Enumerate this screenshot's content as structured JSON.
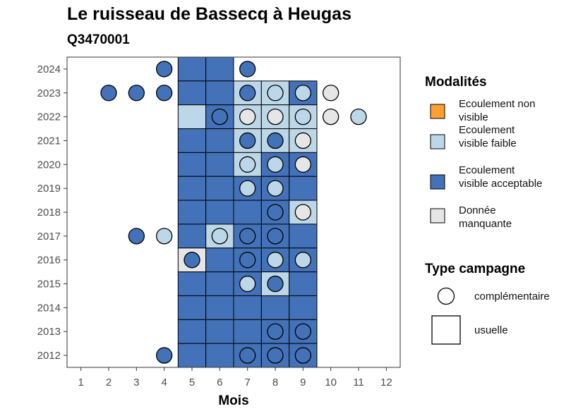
{
  "chart_data": {
    "type": "heatmap",
    "title": "Le ruisseau de Bassecq à Heugas",
    "subtitle": "Q3470001",
    "xlabel": "Mois",
    "ylabel": "",
    "x_ticks": [
      1,
      2,
      3,
      4,
      5,
      6,
      7,
      8,
      9,
      10,
      11,
      12
    ],
    "y_ticks": [
      2012,
      2013,
      2014,
      2015,
      2016,
      2017,
      2018,
      2019,
      2020,
      2021,
      2022,
      2023,
      2024
    ],
    "xlim": [
      0.5,
      12.5
    ],
    "ylim": [
      2011.5,
      2024.5
    ],
    "grid": false,
    "colors": {
      "non_visible": "#ff9e32",
      "faible": "#bcd7e7",
      "acceptable": "#4372b8",
      "manquante": "#e6e6e6"
    },
    "legend": {
      "modalites_title": "Modalités",
      "modalites": [
        {
          "key": "non_visible",
          "label": "Ecoulement non visible"
        },
        {
          "key": "faible",
          "label": "Ecoulement visible faible"
        },
        {
          "key": "acceptable",
          "label": "Ecoulement visible acceptable"
        },
        {
          "key": "manquante",
          "label": "Donnée manquante"
        }
      ],
      "campagne_title": "Type campagne",
      "campagne": [
        {
          "shape": "circle",
          "label": "complémentaire"
        },
        {
          "shape": "square",
          "label": "usuelle"
        }
      ]
    },
    "usuelle": [
      {
        "year": 2024,
        "month": 5,
        "v": "acceptable"
      },
      {
        "year": 2024,
        "month": 6,
        "v": "acceptable"
      },
      {
        "year": 2023,
        "month": 5,
        "v": "acceptable"
      },
      {
        "year": 2023,
        "month": 6,
        "v": "acceptable"
      },
      {
        "year": 2023,
        "month": 7,
        "v": "faible"
      },
      {
        "year": 2023,
        "month": 8,
        "v": "faible"
      },
      {
        "year": 2023,
        "month": 9,
        "v": "acceptable"
      },
      {
        "year": 2022,
        "month": 5,
        "v": "faible"
      },
      {
        "year": 2022,
        "month": 6,
        "v": "acceptable"
      },
      {
        "year": 2022,
        "month": 7,
        "v": "faible"
      },
      {
        "year": 2022,
        "month": 8,
        "v": "faible"
      },
      {
        "year": 2022,
        "month": 9,
        "v": "faible"
      },
      {
        "year": 2021,
        "month": 5,
        "v": "acceptable"
      },
      {
        "year": 2021,
        "month": 6,
        "v": "acceptable"
      },
      {
        "year": 2021,
        "month": 7,
        "v": "faible"
      },
      {
        "year": 2021,
        "month": 8,
        "v": "faible"
      },
      {
        "year": 2021,
        "month": 9,
        "v": "faible"
      },
      {
        "year": 2020,
        "month": 5,
        "v": "acceptable"
      },
      {
        "year": 2020,
        "month": 6,
        "v": "acceptable"
      },
      {
        "year": 2020,
        "month": 7,
        "v": "faible"
      },
      {
        "year": 2020,
        "month": 8,
        "v": "acceptable"
      },
      {
        "year": 2020,
        "month": 9,
        "v": "acceptable"
      },
      {
        "year": 2019,
        "month": 5,
        "v": "acceptable"
      },
      {
        "year": 2019,
        "month": 6,
        "v": "acceptable"
      },
      {
        "year": 2019,
        "month": 7,
        "v": "acceptable"
      },
      {
        "year": 2019,
        "month": 8,
        "v": "acceptable"
      },
      {
        "year": 2019,
        "month": 9,
        "v": "acceptable"
      },
      {
        "year": 2018,
        "month": 5,
        "v": "acceptable"
      },
      {
        "year": 2018,
        "month": 6,
        "v": "acceptable"
      },
      {
        "year": 2018,
        "month": 7,
        "v": "acceptable"
      },
      {
        "year": 2018,
        "month": 8,
        "v": "acceptable"
      },
      {
        "year": 2018,
        "month": 9,
        "v": "faible"
      },
      {
        "year": 2017,
        "month": 5,
        "v": "acceptable"
      },
      {
        "year": 2017,
        "month": 6,
        "v": "faible"
      },
      {
        "year": 2017,
        "month": 7,
        "v": "acceptable"
      },
      {
        "year": 2017,
        "month": 8,
        "v": "acceptable"
      },
      {
        "year": 2017,
        "month": 9,
        "v": "acceptable"
      },
      {
        "year": 2016,
        "month": 5,
        "v": "manquante"
      },
      {
        "year": 2016,
        "month": 6,
        "v": "acceptable"
      },
      {
        "year": 2016,
        "month": 7,
        "v": "acceptable"
      },
      {
        "year": 2016,
        "month": 8,
        "v": "acceptable"
      },
      {
        "year": 2016,
        "month": 9,
        "v": "acceptable"
      },
      {
        "year": 2015,
        "month": 5,
        "v": "acceptable"
      },
      {
        "year": 2015,
        "month": 6,
        "v": "acceptable"
      },
      {
        "year": 2015,
        "month": 7,
        "v": "acceptable"
      },
      {
        "year": 2015,
        "month": 8,
        "v": "faible"
      },
      {
        "year": 2015,
        "month": 9,
        "v": "acceptable"
      },
      {
        "year": 2014,
        "month": 5,
        "v": "acceptable"
      },
      {
        "year": 2014,
        "month": 6,
        "v": "acceptable"
      },
      {
        "year": 2014,
        "month": 7,
        "v": "acceptable"
      },
      {
        "year": 2014,
        "month": 8,
        "v": "acceptable"
      },
      {
        "year": 2014,
        "month": 9,
        "v": "acceptable"
      },
      {
        "year": 2013,
        "month": 5,
        "v": "acceptable"
      },
      {
        "year": 2013,
        "month": 6,
        "v": "acceptable"
      },
      {
        "year": 2013,
        "month": 7,
        "v": "acceptable"
      },
      {
        "year": 2013,
        "month": 8,
        "v": "acceptable"
      },
      {
        "year": 2013,
        "month": 9,
        "v": "acceptable"
      },
      {
        "year": 2012,
        "month": 5,
        "v": "acceptable"
      },
      {
        "year": 2012,
        "month": 6,
        "v": "acceptable"
      },
      {
        "year": 2012,
        "month": 7,
        "v": "acceptable"
      },
      {
        "year": 2012,
        "month": 8,
        "v": "acceptable"
      },
      {
        "year": 2012,
        "month": 9,
        "v": "acceptable"
      }
    ],
    "complementaire": [
      {
        "year": 2024,
        "month": 4,
        "v": "acceptable"
      },
      {
        "year": 2024,
        "month": 7,
        "v": "acceptable"
      },
      {
        "year": 2023,
        "month": 2,
        "v": "acceptable"
      },
      {
        "year": 2023,
        "month": 3,
        "v": "acceptable"
      },
      {
        "year": 2023,
        "month": 4,
        "v": "acceptable"
      },
      {
        "year": 2023,
        "month": 7,
        "v": "acceptable"
      },
      {
        "year": 2023,
        "month": 8,
        "v": "faible"
      },
      {
        "year": 2023,
        "month": 9,
        "v": "faible"
      },
      {
        "year": 2023,
        "month": 10,
        "v": "manquante"
      },
      {
        "year": 2022,
        "month": 6,
        "v": "acceptable"
      },
      {
        "year": 2022,
        "month": 7,
        "v": "manquante"
      },
      {
        "year": 2022,
        "month": 8,
        "v": "manquante"
      },
      {
        "year": 2022,
        "month": 9,
        "v": "faible"
      },
      {
        "year": 2022,
        "month": 10,
        "v": "manquante"
      },
      {
        "year": 2022,
        "month": 11,
        "v": "faible"
      },
      {
        "year": 2021,
        "month": 7,
        "v": "acceptable"
      },
      {
        "year": 2021,
        "month": 8,
        "v": "acceptable"
      },
      {
        "year": 2021,
        "month": 9,
        "v": "manquante"
      },
      {
        "year": 2020,
        "month": 7,
        "v": "faible"
      },
      {
        "year": 2020,
        "month": 8,
        "v": "faible"
      },
      {
        "year": 2020,
        "month": 9,
        "v": "manquante"
      },
      {
        "year": 2019,
        "month": 7,
        "v": "faible"
      },
      {
        "year": 2019,
        "month": 8,
        "v": "faible"
      },
      {
        "year": 2018,
        "month": 8,
        "v": "acceptable"
      },
      {
        "year": 2018,
        "month": 9,
        "v": "manquante"
      },
      {
        "year": 2017,
        "month": 3,
        "v": "acceptable"
      },
      {
        "year": 2017,
        "month": 4,
        "v": "faible"
      },
      {
        "year": 2017,
        "month": 6,
        "v": "faible"
      },
      {
        "year": 2017,
        "month": 7,
        "v": "acceptable"
      },
      {
        "year": 2017,
        "month": 8,
        "v": "acceptable"
      },
      {
        "year": 2016,
        "month": 5,
        "v": "acceptable"
      },
      {
        "year": 2016,
        "month": 7,
        "v": "acceptable"
      },
      {
        "year": 2016,
        "month": 8,
        "v": "faible"
      },
      {
        "year": 2016,
        "month": 9,
        "v": "faible"
      },
      {
        "year": 2015,
        "month": 7,
        "v": "faible"
      },
      {
        "year": 2015,
        "month": 8,
        "v": "acceptable"
      },
      {
        "year": 2013,
        "month": 8,
        "v": "acceptable"
      },
      {
        "year": 2013,
        "month": 9,
        "v": "acceptable"
      },
      {
        "year": 2012,
        "month": 4,
        "v": "acceptable"
      },
      {
        "year": 2012,
        "month": 7,
        "v": "acceptable"
      },
      {
        "year": 2012,
        "month": 8,
        "v": "acceptable"
      },
      {
        "year": 2012,
        "month": 9,
        "v": "acceptable"
      }
    ]
  }
}
